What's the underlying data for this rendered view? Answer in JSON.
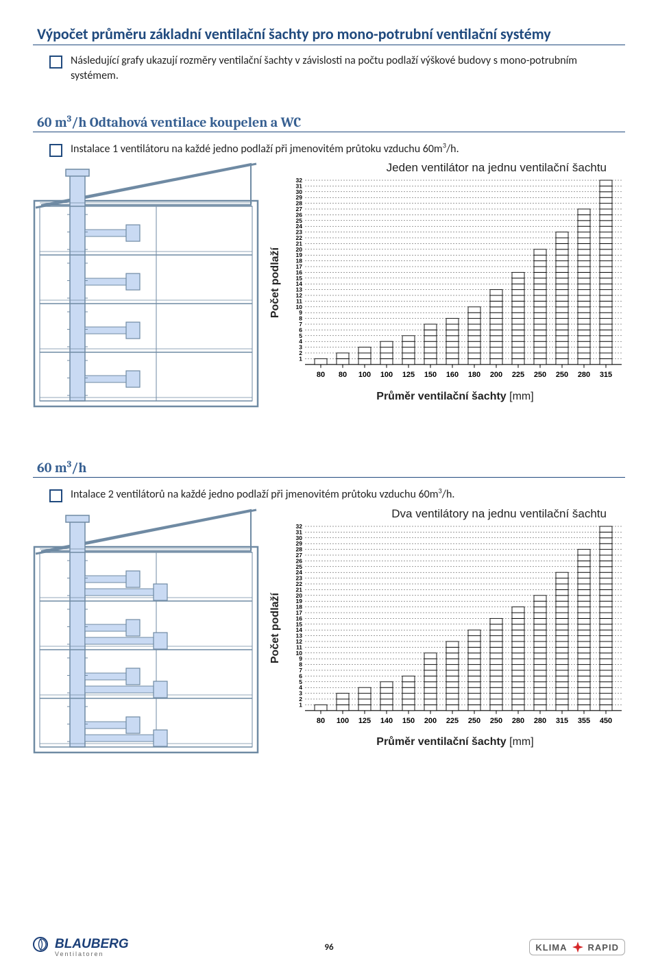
{
  "title": "Výpočet průměru základní ventilační šachty pro mono-potrubní ventilační systémy",
  "intro": "Následující grafy  ukazují rozměry  ventilační šachty v závislosti na počtu podlaží  výškové budovy s mono-potrubním systémem.",
  "section1": {
    "title_prefix": "60 m",
    "title_suffix": "/h   Odtahová ventilace koupelen a WC",
    "bullet_prefix": "Instalace 1 ventilátoru na každé jedno podlaží při jmenovitém průtoku vzduchu 60m",
    "bullet_suffix": "/h."
  },
  "section2": {
    "title_prefix": "60 m",
    "title_suffix": "/h",
    "bullet_prefix": "Intalace 2 ventilátorů na každé jedno podlaží při jmenovitém průtoku vzduchu 60m",
    "bullet_suffix": "/h."
  },
  "chart_common": {
    "ylabel": "Počet podlaží",
    "xlabel": "Průměr ventilační šachty",
    "xunit": "[mm]",
    "y_ticks": [
      32,
      31,
      30,
      29,
      28,
      27,
      26,
      25,
      24,
      23,
      22,
      21,
      20,
      19,
      18,
      17,
      16,
      15,
      14,
      13,
      12,
      11,
      10,
      9,
      8,
      7,
      6,
      5,
      4,
      3,
      2,
      1
    ]
  },
  "chart1": {
    "title": "Jeden ventilátor na jednu ventilační šachtu",
    "x_cats": [
      "80",
      "80",
      "100",
      "100",
      "125",
      "150",
      "160",
      "180",
      "200",
      "225",
      "250",
      "250",
      "280",
      "315"
    ],
    "heights": [
      1,
      2,
      3,
      4,
      5,
      7,
      8,
      10,
      13,
      16,
      20,
      23,
      27,
      32
    ]
  },
  "chart2": {
    "title": "Dva ventilátory na jednu ventilační šachtu",
    "x_cats": [
      "80",
      "100",
      "125",
      "140",
      "150",
      "200",
      "225",
      "250",
      "250",
      "280",
      "280",
      "315",
      "355",
      "450"
    ],
    "heights": [
      1,
      3,
      4,
      5,
      6,
      10,
      12,
      14,
      16,
      18,
      20,
      24,
      28,
      32
    ]
  },
  "colors": {
    "title": "#1f497d",
    "section": "#365f91",
    "schematic_stroke": "#6f8aa3",
    "schematic_fill": "#c9daf3",
    "chart_stroke": "#000000",
    "chart_bg": "#ffffff"
  },
  "house": {
    "floors": 4
  },
  "brand_blauberg": "BLAUBERG",
  "brand_blauberg_sub": "Ventilatoren",
  "brand_klima": "KLIMA",
  "brand_rapid": "RAPID",
  "page_num": "96"
}
